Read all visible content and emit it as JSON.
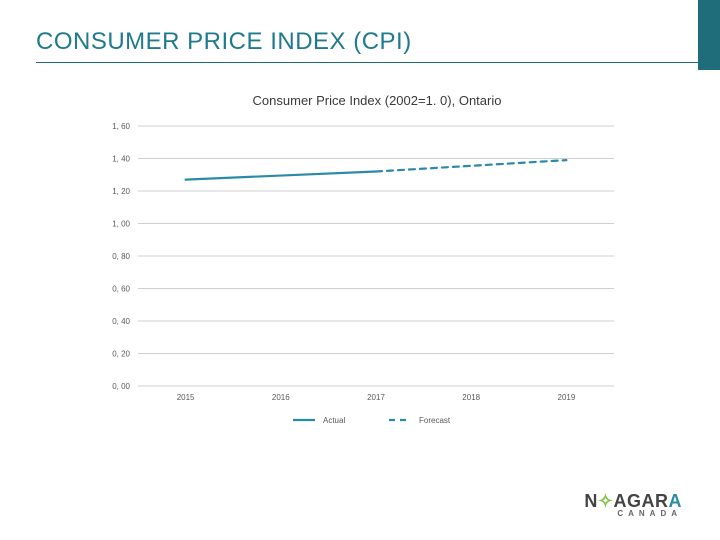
{
  "title": "CONSUMER PRICE INDEX (CPI)",
  "title_color": "#1f7a8c",
  "accent_color": "#1f6d7a",
  "chart": {
    "type": "line",
    "title": "Consumer Price Index  (2002=1. 0), Ontario",
    "title_fontsize": 13,
    "title_color": "#3a3a3a",
    "background_color": "#ffffff",
    "grid_color": "#bfbfbf",
    "grid_width": 0.8,
    "y": {
      "min": 0.0,
      "max": 1.6,
      "ticks": [
        0.0,
        0.2,
        0.4,
        0.6,
        0.8,
        1.0,
        1.2,
        1.4,
        1.6
      ],
      "tick_labels": [
        "0, 00",
        "0, 20",
        "0, 40",
        "0, 60",
        "0, 80",
        "1, 00",
        "1, 20",
        "1, 40",
        "1, 60"
      ],
      "tick_fontsize": 8,
      "tick_color": "#595959"
    },
    "x": {
      "categories": [
        "2015",
        "2016",
        "2017",
        "2018",
        "2019"
      ],
      "tick_fontsize": 8,
      "tick_color": "#595959"
    },
    "series": [
      {
        "name": "Actual",
        "color": "#2a8aa8",
        "line_width": 2.2,
        "dash": "none",
        "points": [
          {
            "x": "2015",
            "y": 1.27
          },
          {
            "x": "2016",
            "y": 1.295
          },
          {
            "x": "2017",
            "y": 1.32
          }
        ]
      },
      {
        "name": "Forecast",
        "color": "#2a8aa8",
        "line_width": 2.2,
        "dash": "6,5",
        "points": [
          {
            "x": "2017",
            "y": 1.32
          },
          {
            "x": "2018",
            "y": 1.355
          },
          {
            "x": "2019",
            "y": 1.39
          }
        ]
      }
    ],
    "legend": {
      "position": "bottom-center",
      "fontsize": 8,
      "text_color": "#595959",
      "items": [
        "Actual",
        "Forecast"
      ]
    }
  },
  "logo": {
    "main_pre": "N",
    "main_accent1_glyph": "✧",
    "main_mid": "AGAR",
    "main_accent2": "A",
    "sub": "CANADA"
  }
}
